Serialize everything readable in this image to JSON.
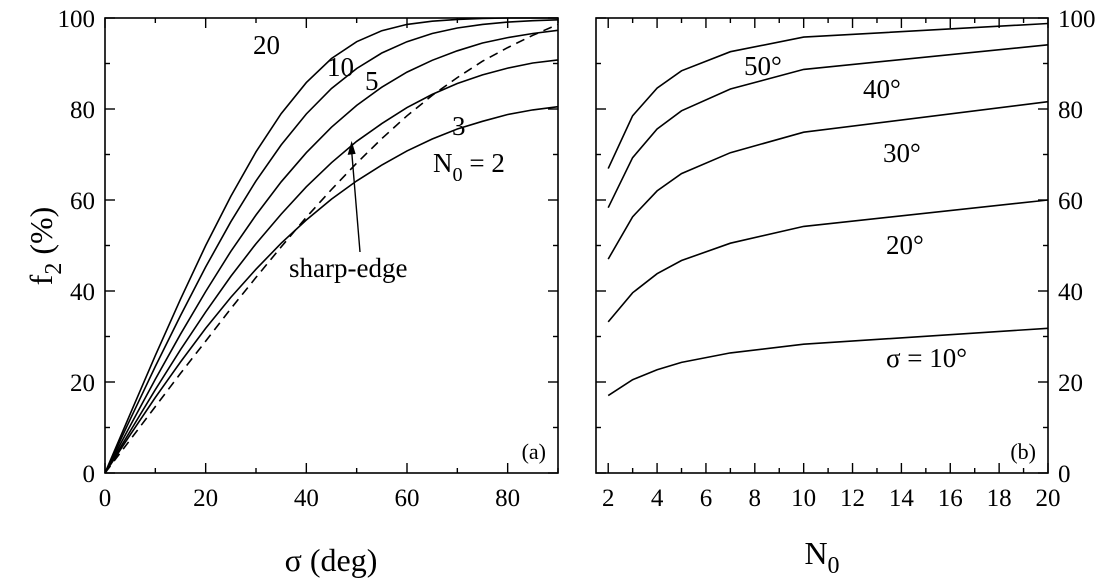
{
  "chart_data": [
    {
      "panel": "a",
      "type": "line",
      "panel_label": "(a)",
      "xlabel": "σ (deg)",
      "ylabel": "f2 (%)",
      "xlim": [
        0,
        90
      ],
      "ylim": [
        0,
        100
      ],
      "xticks": [
        0,
        20,
        40,
        60,
        80
      ],
      "yticks": [
        0,
        20,
        40,
        60,
        80,
        100
      ],
      "grid": false,
      "x": [
        0,
        5,
        10,
        15,
        20,
        25,
        30,
        35,
        40,
        45,
        50,
        55,
        60,
        65,
        70,
        75,
        80,
        85,
        90
      ],
      "series": [
        {
          "label": "N0 = 2",
          "label_sub_base": "N",
          "label_sub": "0",
          "label_rest": " = 2",
          "values": [
            0,
            8.4,
            16.6,
            24.4,
            31.8,
            38.6,
            44.8,
            50.5,
            55.6,
            60.2,
            64.2,
            67.7,
            70.8,
            73.4,
            75.6,
            77.3,
            78.8,
            79.8,
            80.5
          ]
        },
        {
          "label": "3",
          "values": [
            0,
            9.2,
            18.3,
            27.1,
            35.4,
            43.2,
            50.4,
            56.9,
            62.9,
            68.2,
            72.9,
            76.8,
            80.3,
            83.2,
            85.6,
            87.5,
            89.0,
            90.1,
            90.8
          ]
        },
        {
          "label": "5",
          "values": [
            0,
            10.4,
            20.6,
            30.5,
            39.9,
            48.7,
            56.7,
            64.0,
            70.4,
            76.0,
            80.8,
            84.8,
            88.1,
            90.7,
            92.8,
            94.5,
            95.7,
            96.6,
            97.3
          ]
        },
        {
          "label": "10",
          "values": [
            0,
            11.8,
            23.4,
            34.6,
            45.3,
            55.2,
            64.2,
            72.1,
            78.9,
            84.5,
            88.9,
            92.3,
            94.8,
            96.6,
            97.8,
            98.6,
            99.1,
            99.4,
            99.6
          ]
        },
        {
          "label": "20",
          "values": [
            0,
            13.0,
            25.8,
            38.2,
            50.0,
            60.8,
            70.6,
            79.0,
            85.8,
            91.1,
            94.8,
            97.2,
            98.6,
            99.3,
            99.7,
            99.9,
            100,
            100,
            100
          ]
        },
        {
          "label": "sharp-edge",
          "dashed": true,
          "values": [
            0,
            7.3,
            14.6,
            21.9,
            29.0,
            36.1,
            43.0,
            49.7,
            56.2,
            62.3,
            68.1,
            73.5,
            78.5,
            83.0,
            86.9,
            90.5,
            93.5,
            96.2,
            98.6
          ]
        }
      ],
      "annotation": {
        "text": "sharp-edge",
        "arrow_to": [
          49,
          73
        ]
      }
    },
    {
      "panel": "b",
      "type": "line",
      "panel_label": "(b)",
      "xlabel": "N0",
      "xlabel_base": "N",
      "xlabel_sub": "0",
      "xlim": [
        1.5,
        20
      ],
      "ylim": [
        0,
        100
      ],
      "xticks": [
        2,
        4,
        6,
        8,
        10,
        12,
        14,
        16,
        18,
        20
      ],
      "yticks": [
        0,
        20,
        40,
        60,
        80,
        100
      ],
      "grid": false,
      "x": [
        2,
        3,
        4,
        5,
        7,
        10,
        20
      ],
      "series": [
        {
          "label": "σ = 10°",
          "values": [
            17.0,
            20.5,
            22.7,
            24.3,
            26.4,
            28.3,
            31.8
          ]
        },
        {
          "label": "20°",
          "values": [
            33.2,
            39.6,
            43.8,
            46.7,
            50.5,
            54.2,
            60.0
          ]
        },
        {
          "label": "30°",
          "values": [
            47.0,
            56.3,
            62.0,
            65.8,
            70.4,
            74.9,
            81.6
          ]
        },
        {
          "label": "40°",
          "values": [
            58.3,
            69.3,
            75.6,
            79.6,
            84.4,
            88.7,
            94.1
          ]
        },
        {
          "label": "50°",
          "values": [
            66.9,
            78.5,
            84.6,
            88.4,
            92.6,
            95.8,
            98.8
          ]
        }
      ]
    }
  ]
}
